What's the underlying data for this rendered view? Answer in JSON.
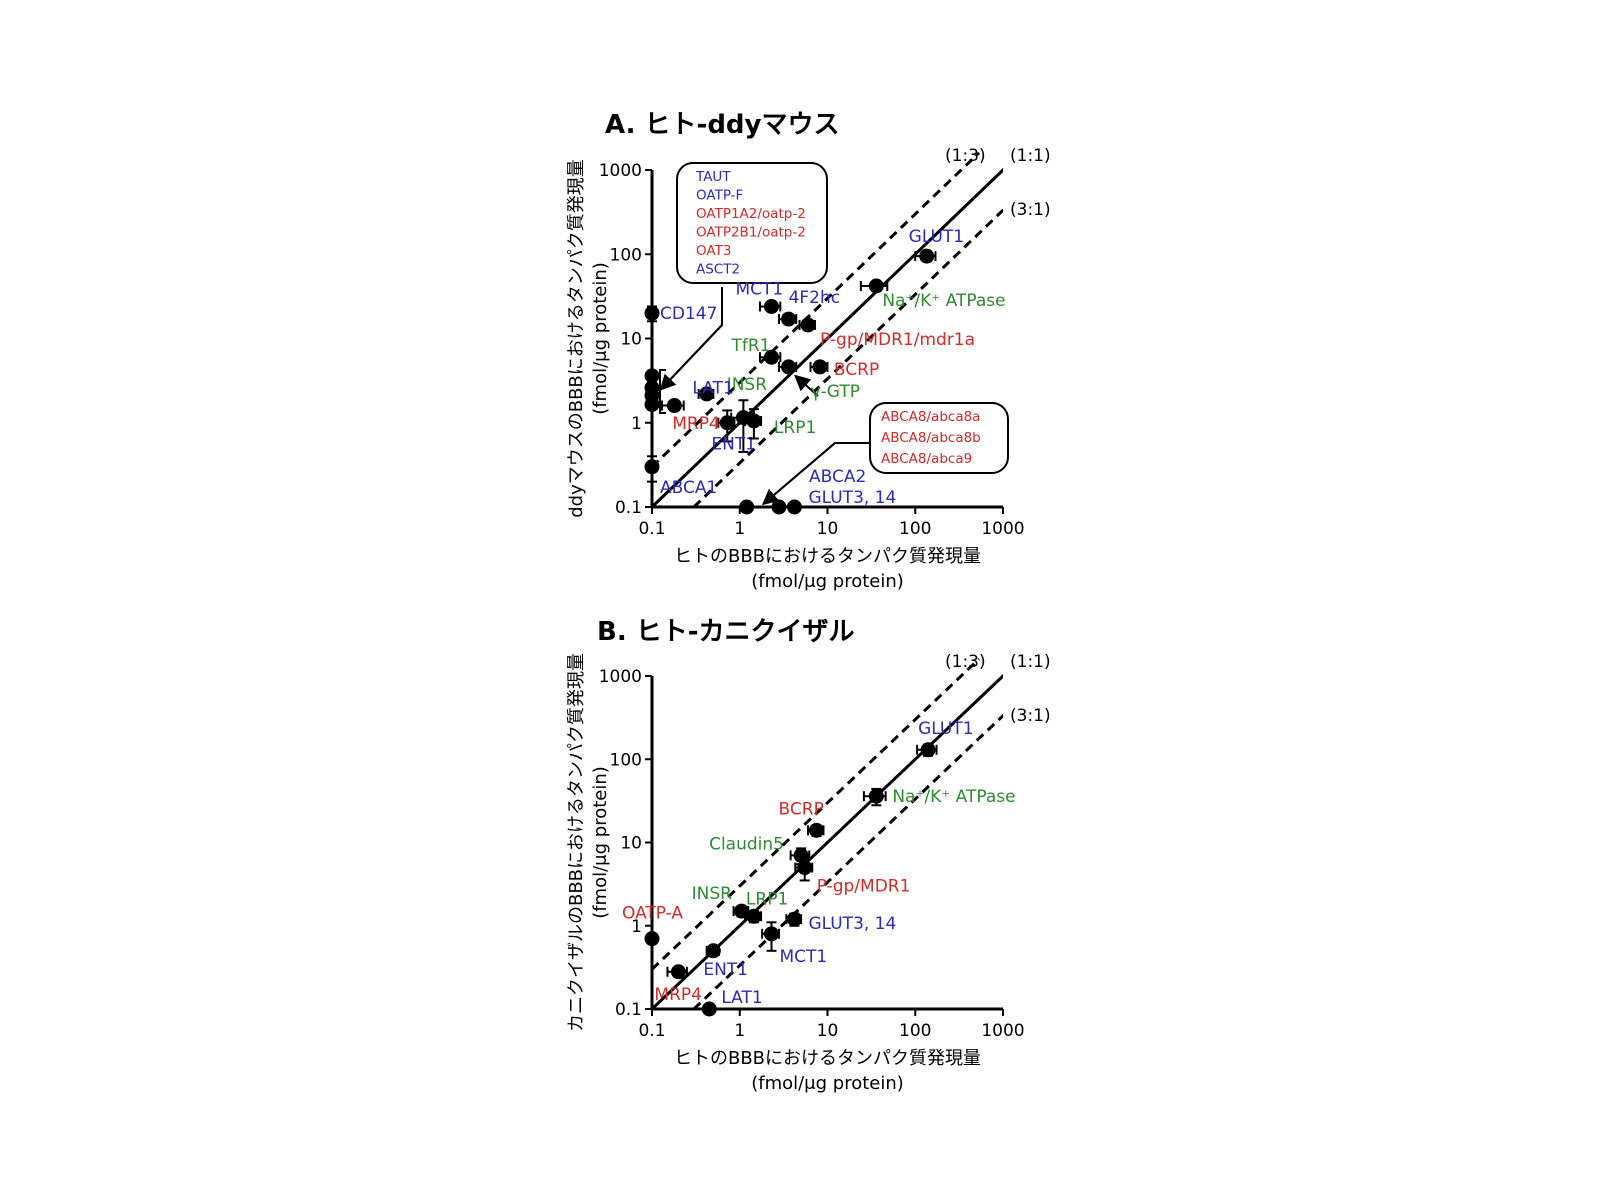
{
  "colors": {
    "transporter": "#2b2bb8",
    "efflux": "#d42a2a",
    "other": "#2e8b2e",
    "axis": "#000000"
  },
  "chart_data": [
    {
      "panel": "A",
      "type": "scatter",
      "title": "A. ヒト-ddyマウス",
      "xlabel": "ヒトのBBBにおけるタンパク質発現量",
      "xlabel_unit": "(fmol/μg protein)",
      "ylabel": "ddyマウスのBBBにおけるタンパク質発現量",
      "ylabel_unit": "(fmol/μg protein)",
      "xscale": "log",
      "yscale": "log",
      "xlim": [
        0.1,
        1000
      ],
      "ylim": [
        0.1,
        1000
      ],
      "xticks": [
        "0.1",
        "1",
        "10",
        "100",
        "1000"
      ],
      "yticks": [
        "0.1",
        "1",
        "10",
        "100",
        "1000"
      ],
      "reference_lines": [
        {
          "label": "(1:3)",
          "ratio": 3,
          "style": "dashed"
        },
        {
          "label": "(1:1)",
          "ratio": 1,
          "style": "solid"
        },
        {
          "label": "(3:1)",
          "ratio": 0.3333,
          "style": "dashed"
        }
      ],
      "points": [
        {
          "label": "GLUT1",
          "x": 135,
          "y": 95,
          "xerr": 35,
          "yerr": 0,
          "color": "transporter"
        },
        {
          "label": "Na⁺/K⁺ ATPase",
          "x": 36,
          "y": 42,
          "xerr": 12,
          "yerr": 0,
          "color": "other"
        },
        {
          "label": "MCT1",
          "x": 2.3,
          "y": 24,
          "xerr": 0.6,
          "yerr": 0,
          "color": "transporter"
        },
        {
          "label": "4F2hc",
          "x": 3.6,
          "y": 17,
          "xerr": 0.8,
          "yerr": 0,
          "color": "transporter"
        },
        {
          "label": "P-gp/MDR1/mdr1a",
          "x": 6,
          "y": 14.5,
          "xerr": 1.2,
          "yerr": 0,
          "color": "efflux"
        },
        {
          "label": "TfR1",
          "x": 2.3,
          "y": 6,
          "xerr": 0.6,
          "yerr": 0,
          "color": "other"
        },
        {
          "label": "BCRP",
          "x": 8.2,
          "y": 4.6,
          "xerr": 1.8,
          "yerr": 0,
          "color": "efflux"
        },
        {
          "label": "γ-GTP",
          "x": 3.6,
          "y": 4.6,
          "xerr": 0.8,
          "yerr": 0,
          "color": "other"
        },
        {
          "label": "INSR",
          "x": 0.42,
          "y": 2.2,
          "xerr": 0.08,
          "yerr": 0,
          "color": "other"
        },
        {
          "label": "LAT1",
          "x": 0.18,
          "y": 1.6,
          "xerr": 0.05,
          "yerr": 0,
          "color": "transporter"
        },
        {
          "label": "MRP4",
          "x": 0.72,
          "y": 1.0,
          "xerr": 0.15,
          "yerr": 0.4,
          "color": "efflux"
        },
        {
          "label": "ENT1",
          "x": 1.1,
          "y": 1.15,
          "xerr": 0.3,
          "yerr": 0.7,
          "color": "transporter"
        },
        {
          "label": "LRP1",
          "x": 1.45,
          "y": 1.05,
          "xerr": 0.3,
          "yerr": 0.4,
          "color": "other"
        },
        {
          "label": "CD147",
          "x": 0.1,
          "y": 20,
          "xerr": 0,
          "yerr": 4,
          "color": "transporter"
        },
        {
          "label": "ABCA1",
          "x": 0.1,
          "y": 0.3,
          "xerr": 0,
          "yerr": 0.1,
          "color": "transporter"
        },
        {
          "label": "ABCA2",
          "x": 2.8,
          "y": 0.1,
          "xerr": 0,
          "yerr": 0,
          "color": "transporter"
        },
        {
          "label": "GLUT3, 14",
          "x": 4.2,
          "y": 0.1,
          "xerr": 0,
          "yerr": 0,
          "color": "transporter"
        },
        {
          "label": "",
          "x": 1.2,
          "y": 0.1,
          "xerr": 0,
          "yerr": 0,
          "color": "efflux"
        },
        {
          "label": "",
          "x": 0.1,
          "y": 3.6,
          "xerr": 0,
          "yerr": 0,
          "color": "transporter"
        },
        {
          "label": "",
          "x": 0.1,
          "y": 2.6,
          "xerr": 0,
          "yerr": 0,
          "color": "transporter"
        },
        {
          "label": "",
          "x": 0.1,
          "y": 2.1,
          "xerr": 0,
          "yerr": 0,
          "color": "transporter"
        },
        {
          "label": "",
          "x": 0.1,
          "y": 1.65,
          "xerr": 0,
          "yerr": 0,
          "color": "transporter"
        }
      ],
      "boxes": [
        {
          "items": [
            {
              "text": "TAUT",
              "color": "transporter"
            },
            {
              "text": "OATP-F",
              "color": "transporter"
            },
            {
              "text": "OATP1A2/oatp-2",
              "color": "efflux"
            },
            {
              "text": "OATP2B1/oatp-2",
              "color": "efflux"
            },
            {
              "text": "OAT3",
              "color": "efflux"
            },
            {
              "text": "ASCT2",
              "color": "transporter"
            }
          ]
        },
        {
          "items": [
            {
              "text": "ABCA8/abca8a",
              "color": "efflux"
            },
            {
              "text": "ABCA8/abca8b",
              "color": "efflux"
            },
            {
              "text": "ABCA8/abca9",
              "color": "efflux"
            }
          ]
        }
      ]
    },
    {
      "panel": "B",
      "type": "scatter",
      "title": "B. ヒト-カニクイザル",
      "xlabel": "ヒトのBBBにおけるタンパク質発現量",
      "xlabel_unit": "(fmol/μg protein)",
      "ylabel": "カニクイザルのBBBにおけるタンパク質発現量",
      "ylabel_unit": "(fmol/μg protein)",
      "xscale": "log",
      "yscale": "log",
      "xlim": [
        0.1,
        1000
      ],
      "ylim": [
        0.1,
        1000
      ],
      "xticks": [
        "0.1",
        "1",
        "10",
        "100",
        "1000"
      ],
      "yticks": [
        "0.1",
        "1",
        "10",
        "100",
        "1000"
      ],
      "reference_lines": [
        {
          "label": "(1:3)",
          "ratio": 3,
          "style": "dashed"
        },
        {
          "label": "(1:1)",
          "ratio": 1,
          "style": "solid"
        },
        {
          "label": "(3:1)",
          "ratio": 0.3333,
          "style": "dashed"
        }
      ],
      "points": [
        {
          "label": "GLUT1",
          "x": 140,
          "y": 130,
          "xerr": 35,
          "yerr": 20,
          "color": "transporter"
        },
        {
          "label": "Na⁺/K⁺ ATPase",
          "x": 36,
          "y": 36,
          "xerr": 10,
          "yerr": 8,
          "color": "other"
        },
        {
          "label": "BCRP",
          "x": 7.5,
          "y": 14,
          "xerr": 1.5,
          "yerr": 2,
          "color": "efflux"
        },
        {
          "label": "Claudin5",
          "x": 5,
          "y": 7,
          "xerr": 1.2,
          "yerr": 1.5,
          "color": "other"
        },
        {
          "label": "P-gp/MDR1",
          "x": 5.5,
          "y": 5,
          "xerr": 1.2,
          "yerr": 1.5,
          "color": "efflux"
        },
        {
          "label": "INSR",
          "x": 1.05,
          "y": 1.5,
          "xerr": 0.2,
          "yerr": 0.2,
          "color": "other"
        },
        {
          "label": "LRP1",
          "x": 1.45,
          "y": 1.3,
          "xerr": 0.3,
          "yerr": 0.2,
          "color": "other"
        },
        {
          "label": "GLUT3, 14",
          "x": 4.2,
          "y": 1.2,
          "xerr": 0.8,
          "yerr": 0.2,
          "color": "transporter"
        },
        {
          "label": "MCT1",
          "x": 2.3,
          "y": 0.8,
          "xerr": 0.5,
          "yerr": 0.3,
          "color": "transporter"
        },
        {
          "label": "OATP-A",
          "x": 0.1,
          "y": 0.7,
          "xerr": 0,
          "yerr": 0,
          "color": "efflux"
        },
        {
          "label": "ENT1",
          "x": 0.5,
          "y": 0.5,
          "xerr": 0.08,
          "yerr": 0.05,
          "color": "transporter"
        },
        {
          "label": "MRP4",
          "x": 0.2,
          "y": 0.28,
          "xerr": 0.05,
          "yerr": 0.03,
          "color": "efflux"
        },
        {
          "label": "LAT1",
          "x": 0.45,
          "y": 0.1,
          "xerr": 0.05,
          "yerr": 0,
          "color": "transporter"
        }
      ]
    }
  ]
}
